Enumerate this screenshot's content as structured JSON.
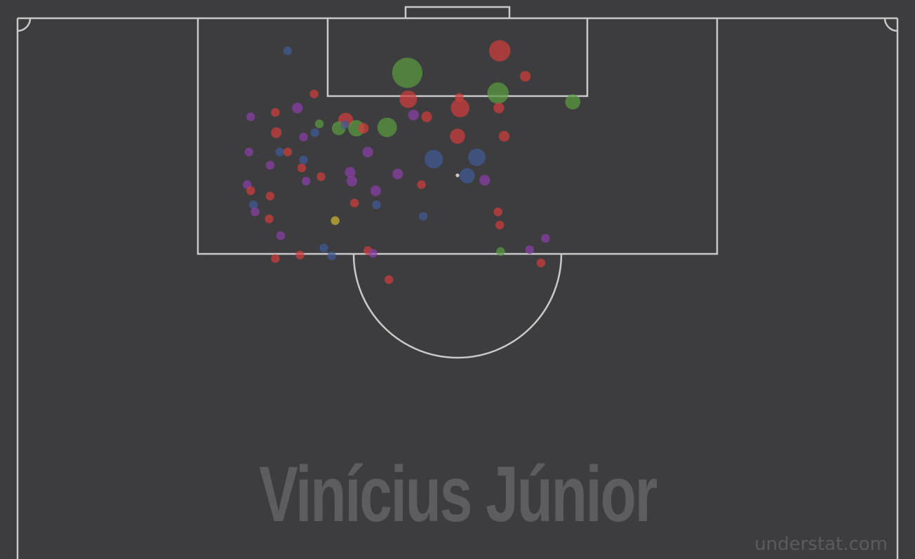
{
  "player_name": "Vinícius Júnior",
  "watermark": "understat.com",
  "colors": {
    "background": "#3d3d40",
    "pitch_lines": "#c9c9c9",
    "goal": "#5a9a3e",
    "missed": "#d03c3c",
    "saved": "#8a3ea8",
    "blocked": "#3f5a94",
    "shot_on_post": "#c9b62c"
  },
  "chart_data": {
    "type": "scatter",
    "title": "Vinícius Júnior",
    "xlabel": "",
    "ylabel": "",
    "legend": "none",
    "grid": false,
    "xlim": [
      0,
      1
    ],
    "ylim": [
      0.45,
      1
    ],
    "x_axis_meaning": "width of pitch (0 = left touchline, 1 = right touchline)",
    "y_axis_meaning": "length of pitch toward goal (1 = goal line)",
    "size_meaning": "expected goals (xG)",
    "shots": [
      {
        "x": 0.307,
        "y": 0.963,
        "xg": 0.02,
        "result": "blocked"
      },
      {
        "x": 0.548,
        "y": 0.963,
        "xg": 0.12,
        "result": "missed"
      },
      {
        "x": 0.577,
        "y": 0.934,
        "xg": 0.03,
        "result": "missed"
      },
      {
        "x": 0.443,
        "y": 0.938,
        "xg": 0.24,
        "result": "goal"
      },
      {
        "x": 0.546,
        "y": 0.915,
        "xg": 0.12,
        "result": "goal"
      },
      {
        "x": 0.631,
        "y": 0.905,
        "xg": 0.06,
        "result": "goal"
      },
      {
        "x": 0.444,
        "y": 0.908,
        "xg": 0.08,
        "result": "missed"
      },
      {
        "x": 0.502,
        "y": 0.91,
        "xg": 0.02,
        "result": "missed"
      },
      {
        "x": 0.503,
        "y": 0.898,
        "xg": 0.09,
        "result": "missed"
      },
      {
        "x": 0.547,
        "y": 0.898,
        "xg": 0.03,
        "result": "missed"
      },
      {
        "x": 0.337,
        "y": 0.914,
        "xg": 0.02,
        "result": "missed"
      },
      {
        "x": 0.318,
        "y": 0.898,
        "xg": 0.03,
        "result": "saved"
      },
      {
        "x": 0.293,
        "y": 0.893,
        "xg": 0.02,
        "result": "missed"
      },
      {
        "x": 0.265,
        "y": 0.888,
        "xg": 0.02,
        "result": "saved"
      },
      {
        "x": 0.45,
        "y": 0.89,
        "xg": 0.03,
        "result": "saved"
      },
      {
        "x": 0.465,
        "y": 0.888,
        "xg": 0.03,
        "result": "missed"
      },
      {
        "x": 0.373,
        "y": 0.884,
        "xg": 0.06,
        "result": "missed"
      },
      {
        "x": 0.343,
        "y": 0.88,
        "xg": 0.02,
        "result": "goal"
      },
      {
        "x": 0.365,
        "y": 0.875,
        "xg": 0.05,
        "result": "goal"
      },
      {
        "x": 0.385,
        "y": 0.875,
        "xg": 0.07,
        "result": "goal"
      },
      {
        "x": 0.393,
        "y": 0.875,
        "xg": 0.03,
        "result": "missed"
      },
      {
        "x": 0.42,
        "y": 0.876,
        "xg": 0.1,
        "result": "goal"
      },
      {
        "x": 0.372,
        "y": 0.879,
        "xg": 0.02,
        "result": "blocked"
      },
      {
        "x": 0.294,
        "y": 0.87,
        "xg": 0.03,
        "result": "missed"
      },
      {
        "x": 0.338,
        "y": 0.87,
        "xg": 0.02,
        "result": "blocked"
      },
      {
        "x": 0.325,
        "y": 0.865,
        "xg": 0.02,
        "result": "saved"
      },
      {
        "x": 0.5,
        "y": 0.866,
        "xg": 0.06,
        "result": "missed"
      },
      {
        "x": 0.553,
        "y": 0.866,
        "xg": 0.03,
        "result": "missed"
      },
      {
        "x": 0.263,
        "y": 0.848,
        "xg": 0.02,
        "result": "saved"
      },
      {
        "x": 0.298,
        "y": 0.848,
        "xg": 0.02,
        "result": "blocked"
      },
      {
        "x": 0.307,
        "y": 0.848,
        "xg": 0.02,
        "result": "missed"
      },
      {
        "x": 0.398,
        "y": 0.848,
        "xg": 0.03,
        "result": "saved"
      },
      {
        "x": 0.473,
        "y": 0.84,
        "xg": 0.09,
        "result": "blocked"
      },
      {
        "x": 0.522,
        "y": 0.842,
        "xg": 0.08,
        "result": "blocked"
      },
      {
        "x": 0.325,
        "y": 0.839,
        "xg": 0.02,
        "result": "blocked"
      },
      {
        "x": 0.287,
        "y": 0.833,
        "xg": 0.02,
        "result": "saved"
      },
      {
        "x": 0.323,
        "y": 0.83,
        "xg": 0.02,
        "result": "missed"
      },
      {
        "x": 0.378,
        "y": 0.825,
        "xg": 0.03,
        "result": "saved"
      },
      {
        "x": 0.432,
        "y": 0.823,
        "xg": 0.03,
        "result": "saved"
      },
      {
        "x": 0.345,
        "y": 0.82,
        "xg": 0.02,
        "result": "missed"
      },
      {
        "x": 0.511,
        "y": 0.821,
        "xg": 0.06,
        "result": "blocked"
      },
      {
        "x": 0.328,
        "y": 0.815,
        "xg": 0.02,
        "result": "saved"
      },
      {
        "x": 0.38,
        "y": 0.815,
        "xg": 0.03,
        "result": "saved"
      },
      {
        "x": 0.531,
        "y": 0.816,
        "xg": 0.03,
        "result": "saved"
      },
      {
        "x": 0.261,
        "y": 0.811,
        "xg": 0.02,
        "result": "saved"
      },
      {
        "x": 0.459,
        "y": 0.811,
        "xg": 0.02,
        "result": "missed"
      },
      {
        "x": 0.265,
        "y": 0.804,
        "xg": 0.02,
        "result": "missed"
      },
      {
        "x": 0.407,
        "y": 0.804,
        "xg": 0.03,
        "result": "saved"
      },
      {
        "x": 0.287,
        "y": 0.798,
        "xg": 0.02,
        "result": "missed"
      },
      {
        "x": 0.383,
        "y": 0.79,
        "xg": 0.02,
        "result": "missed"
      },
      {
        "x": 0.408,
        "y": 0.788,
        "xg": 0.02,
        "result": "blocked"
      },
      {
        "x": 0.268,
        "y": 0.788,
        "xg": 0.02,
        "result": "blocked"
      },
      {
        "x": 0.27,
        "y": 0.78,
        "xg": 0.02,
        "result": "saved"
      },
      {
        "x": 0.546,
        "y": 0.78,
        "xg": 0.02,
        "result": "missed"
      },
      {
        "x": 0.286,
        "y": 0.772,
        "xg": 0.02,
        "result": "missed"
      },
      {
        "x": 0.461,
        "y": 0.775,
        "xg": 0.02,
        "result": "blocked"
      },
      {
        "x": 0.361,
        "y": 0.77,
        "xg": 0.02,
        "result": "shot_on_post"
      },
      {
        "x": 0.548,
        "y": 0.765,
        "xg": 0.02,
        "result": "missed"
      },
      {
        "x": 0.299,
        "y": 0.753,
        "xg": 0.02,
        "result": "saved"
      },
      {
        "x": 0.6,
        "y": 0.75,
        "xg": 0.02,
        "result": "saved"
      },
      {
        "x": 0.348,
        "y": 0.739,
        "xg": 0.02,
        "result": "blocked"
      },
      {
        "x": 0.398,
        "y": 0.736,
        "xg": 0.02,
        "result": "missed"
      },
      {
        "x": 0.404,
        "y": 0.733,
        "xg": 0.02,
        "result": "saved"
      },
      {
        "x": 0.582,
        "y": 0.737,
        "xg": 0.02,
        "result": "saved"
      },
      {
        "x": 0.549,
        "y": 0.735,
        "xg": 0.02,
        "result": "goal"
      },
      {
        "x": 0.357,
        "y": 0.73,
        "xg": 0.02,
        "result": "blocked"
      },
      {
        "x": 0.321,
        "y": 0.731,
        "xg": 0.02,
        "result": "missed"
      },
      {
        "x": 0.293,
        "y": 0.727,
        "xg": 0.02,
        "result": "missed"
      },
      {
        "x": 0.595,
        "y": 0.722,
        "xg": 0.02,
        "result": "missed"
      },
      {
        "x": 0.422,
        "y": 0.703,
        "xg": 0.02,
        "result": "missed"
      }
    ]
  }
}
